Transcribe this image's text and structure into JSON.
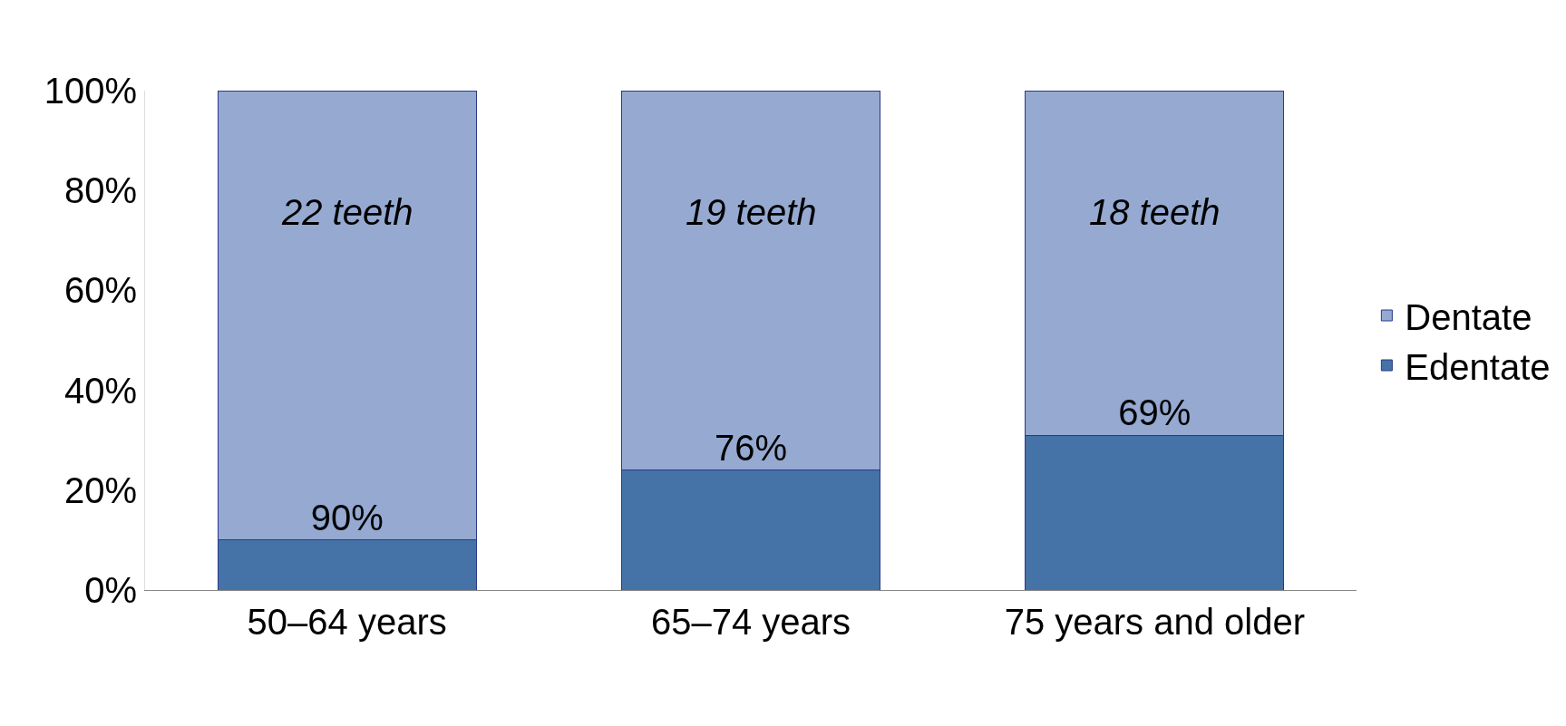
{
  "chart_data": {
    "type": "bar",
    "stacked": true,
    "categories": [
      "50–64 years",
      "65–74 years",
      "75 years and older"
    ],
    "series": [
      {
        "name": "Edentate",
        "color": "#4572a7",
        "values": [
          10,
          24,
          31
        ]
      },
      {
        "name": "Dentate",
        "color": "#95a9d1",
        "values": [
          90,
          76,
          69
        ],
        "value_labels": [
          "90%",
          "76%",
          "69%"
        ]
      }
    ],
    "ylim": [
      0,
      100
    ],
    "yticks": [
      {
        "value": 0,
        "label": "0%"
      },
      {
        "value": 20,
        "label": "20%"
      },
      {
        "value": 40,
        "label": "40%"
      },
      {
        "value": 60,
        "label": "60%"
      },
      {
        "value": 80,
        "label": "80%"
      },
      {
        "value": 100,
        "label": "100%"
      }
    ],
    "annotations": [
      "22 teeth",
      "19 teeth",
      "18 teeth"
    ],
    "legend": "right"
  }
}
